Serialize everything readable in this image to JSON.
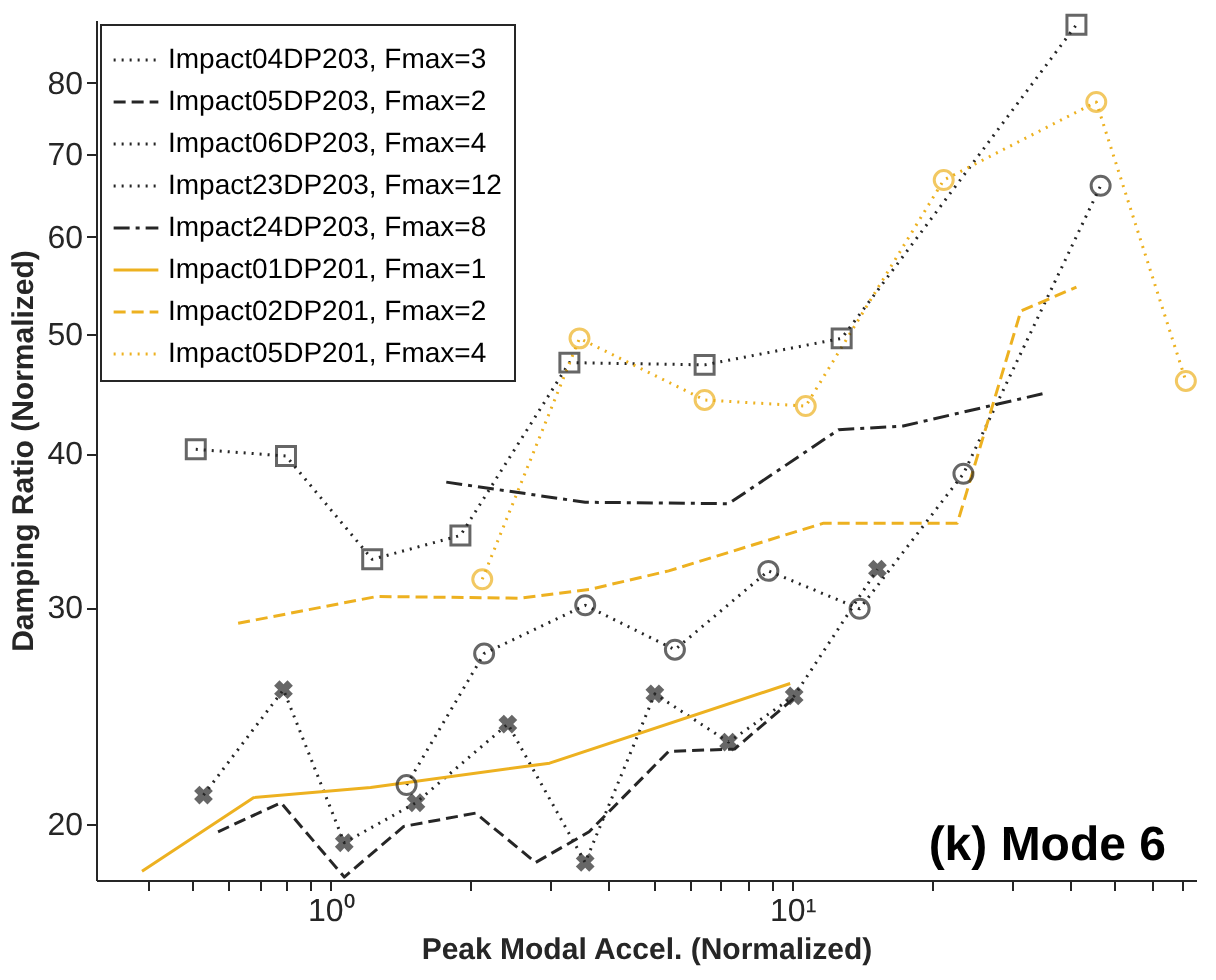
{
  "chart_data": {
    "type": "line",
    "xlabel": "Peak Modal Accel. (Normalized)",
    "ylabel": "Damping Ratio (Normalized)",
    "log": "xy",
    "grid": false,
    "legend": "top left",
    "xlim": [
      0.31,
      75
    ],
    "ylim": [
      18,
      90
    ],
    "xticks": [
      {
        "value": 0.4,
        "label": null
      },
      {
        "value": 0.5,
        "label": null
      },
      {
        "value": 0.6,
        "label": null
      },
      {
        "value": 0.7,
        "label": null
      },
      {
        "value": 0.8,
        "label": null
      },
      {
        "value": 0.9,
        "label": null
      },
      {
        "value": 1,
        "label": "10⁰"
      },
      {
        "value": 2,
        "label": null
      },
      {
        "value": 3,
        "label": null
      },
      {
        "value": 4,
        "label": null
      },
      {
        "value": 5,
        "label": null
      },
      {
        "value": 6,
        "label": null
      },
      {
        "value": 7,
        "label": null
      },
      {
        "value": 8,
        "label": null
      },
      {
        "value": 9,
        "label": null
      },
      {
        "value": 10,
        "label": "10¹"
      },
      {
        "value": 20,
        "label": null
      },
      {
        "value": 30,
        "label": null
      },
      {
        "value": 40,
        "label": null
      },
      {
        "value": 50,
        "label": null
      },
      {
        "value": 60,
        "label": null
      },
      {
        "value": 70,
        "label": null
      }
    ],
    "yticks": [
      20,
      30,
      40,
      50,
      60,
      70,
      80
    ],
    "annotations": [
      "(k) Mode 6"
    ],
    "series": [
      {
        "name": "Impact04DP203, Fmax=3",
        "color": "#262626",
        "marker": "cross",
        "line_style": "dotted",
        "x": [
          0.53,
          0.79,
          1.07,
          1.53,
          2.42,
          3.56,
          5.04,
          7.28,
          10.1,
          15.3
        ],
        "values": [
          21.1,
          25.7,
          19.3,
          20.8,
          24.1,
          18.6,
          25.5,
          23.3,
          25.4,
          32.2
        ]
      },
      {
        "name": "Impact05DP203, Fmax=2",
        "color": "#262626",
        "marker": "none",
        "line_style": "dashed",
        "x": [
          0.57,
          0.78,
          1.07,
          1.44,
          2.06,
          2.78,
          3.63,
          5.4,
          7.5,
          10.1
        ],
        "values": [
          19.7,
          20.8,
          18.1,
          19.9,
          20.4,
          18.6,
          19.7,
          22.9,
          23.0,
          25.3
        ]
      },
      {
        "name": "Impact06DP203, Fmax=4",
        "color": "#262626",
        "marker": "circle",
        "line_style": "dotted",
        "x": [
          1.46,
          2.15,
          3.56,
          5.57,
          8.88,
          14.0,
          23.5,
          46.6
        ],
        "values": [
          21.5,
          27.5,
          30.1,
          27.7,
          32.1,
          29.9,
          38.5,
          66.0
        ]
      },
      {
        "name": "Impact23DP203, Fmax=12",
        "color": "#262626",
        "marker": "square",
        "line_style": "dotted",
        "x": [
          0.51,
          0.8,
          1.23,
          1.91,
          3.29,
          6.46,
          12.8,
          41.3
        ],
        "values": [
          40.3,
          39.8,
          32.8,
          34.3,
          47.4,
          47.2,
          49.6,
          89.2
        ]
      },
      {
        "name": "Impact24DP203, Fmax=8",
        "color": "#262626",
        "marker": "none",
        "line_style": "dashdot",
        "x": [
          1.78,
          3.56,
          7.28,
          12.6,
          17.4,
          35.6
        ],
        "values": [
          37.9,
          36.5,
          36.4,
          41.8,
          42.1,
          44.8
        ]
      },
      {
        "name": "Impact01DP201, Fmax=1",
        "color": "#edb120",
        "marker": "none",
        "line_style": "solid",
        "x": [
          0.39,
          0.68,
          1.22,
          2.98,
          9.9
        ],
        "values": [
          18.3,
          21.0,
          21.4,
          22.4,
          26.0
        ]
      },
      {
        "name": "Impact02DP201, Fmax=2",
        "color": "#edb120",
        "marker": "none",
        "line_style": "dashed",
        "x": [
          0.63,
          1.26,
          2.57,
          3.63,
          5.4,
          11.7,
          22.8,
          31.3,
          41.3
        ],
        "values": [
          29.1,
          30.6,
          30.5,
          31.0,
          32.1,
          35.1,
          35.1,
          52.2,
          54.6
        ]
      },
      {
        "name": "Impact05DP201, Fmax=4",
        "color": "#edb120",
        "marker": "circle",
        "line_style": "dotted",
        "x": [
          2.13,
          3.46,
          6.46,
          10.7,
          21.3,
          45.6,
          71.3
        ],
        "values": [
          31.6,
          49.6,
          44.2,
          43.7,
          66.7,
          77.2,
          45.8
        ]
      }
    ]
  }
}
